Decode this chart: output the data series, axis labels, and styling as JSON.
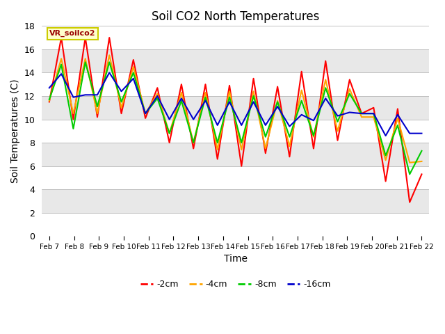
{
  "title": "Soil CO2 North Temperatures",
  "xlabel": "Time",
  "ylabel": "Soil Temperatures (C)",
  "ylim": [
    0,
    18
  ],
  "annotation": "VR_soilco2",
  "x_labels": [
    "Feb 7",
    "Feb 8",
    "Feb 9",
    "Feb 10",
    "Feb 11",
    "Feb 12",
    "Feb 13",
    "Feb 14",
    "Feb 15",
    "Feb 16",
    "Feb 17",
    "Feb 18",
    "Feb 19",
    "Feb 20",
    "Feb 21",
    "Feb 22"
  ],
  "band_colors": [
    "#ffffff",
    "#e8e8e8"
  ],
  "series": {
    "-2cm": {
      "color": "#ff0000",
      "values": [
        11.5,
        17.0,
        10.0,
        17.0,
        10.2,
        17.0,
        10.5,
        15.1,
        10.1,
        12.7,
        8.0,
        13.0,
        7.5,
        13.0,
        6.6,
        12.9,
        6.0,
        13.5,
        7.1,
        12.8,
        6.8,
        14.1,
        7.5,
        15.0,
        8.2,
        13.4,
        10.5,
        11.0,
        4.7,
        10.9,
        2.9,
        5.3
      ]
    },
    "-4cm": {
      "color": "#ffa500",
      "values": [
        11.6,
        15.2,
        10.5,
        15.2,
        10.5,
        15.5,
        11.0,
        14.5,
        10.5,
        12.2,
        8.8,
        12.3,
        8.0,
        12.3,
        7.4,
        12.4,
        7.4,
        12.4,
        7.5,
        11.6,
        7.7,
        12.5,
        8.5,
        13.4,
        9.0,
        12.6,
        10.2,
        10.2,
        6.5,
        10.1,
        6.3,
        6.4
      ]
    },
    "-8cm": {
      "color": "#00cc00",
      "values": [
        11.7,
        14.7,
        9.2,
        14.9,
        11.1,
        14.9,
        11.5,
        14.0,
        10.5,
        11.8,
        8.8,
        11.6,
        8.0,
        11.9,
        8.0,
        11.9,
        8.0,
        12.0,
        8.5,
        11.5,
        8.5,
        11.6,
        8.6,
        12.7,
        9.8,
        12.2,
        10.5,
        10.5,
        6.9,
        9.5,
        5.3,
        7.3
      ]
    },
    "-16cm": {
      "color": "#0000cc",
      "values": [
        12.7,
        13.9,
        11.9,
        12.1,
        12.1,
        14.0,
        12.4,
        13.5,
        10.5,
        12.0,
        10.0,
        11.8,
        10.0,
        11.6,
        9.5,
        11.5,
        9.5,
        11.5,
        9.5,
        11.1,
        9.4,
        10.4,
        9.9,
        11.8,
        10.3,
        10.6,
        10.5,
        10.5,
        8.6,
        10.4,
        8.8,
        8.8
      ]
    }
  }
}
